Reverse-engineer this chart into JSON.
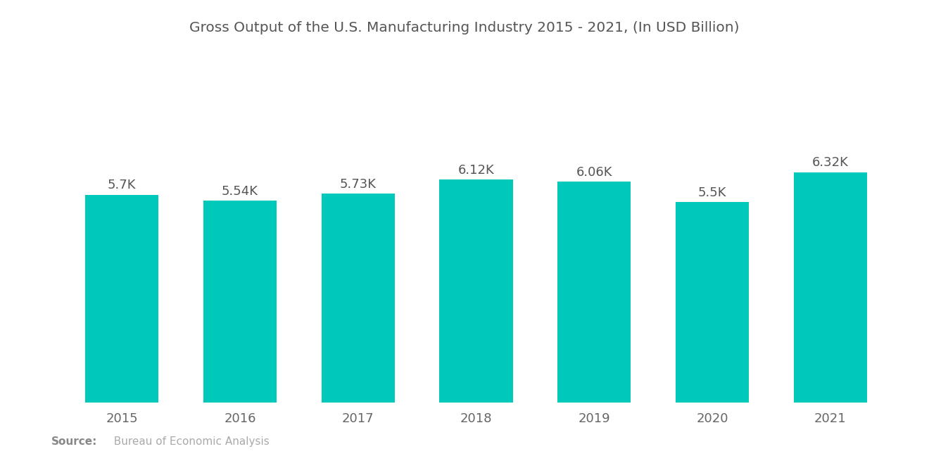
{
  "title": "Gross Output of the U.S. Manufacturing Industry 2015 - 2021, (In USD Billion)",
  "categories": [
    "2015",
    "2016",
    "2017",
    "2018",
    "2019",
    "2020",
    "2021"
  ],
  "values": [
    5700,
    5540,
    5730,
    6120,
    6060,
    5500,
    6320
  ],
  "bar_labels": [
    "5.7K",
    "5.54K",
    "5.73K",
    "6.12K",
    "6.06K",
    "5.5K",
    "6.32K"
  ],
  "bar_color": "#00C9BB",
  "background_color": "#ffffff",
  "title_fontsize": 14.5,
  "label_fontsize": 13,
  "tick_fontsize": 13,
  "source_bold": "Source:",
  "source_text": "  Bureau of Economic Analysis",
  "ylim": [
    0,
    9500
  ],
  "bar_width": 0.62
}
